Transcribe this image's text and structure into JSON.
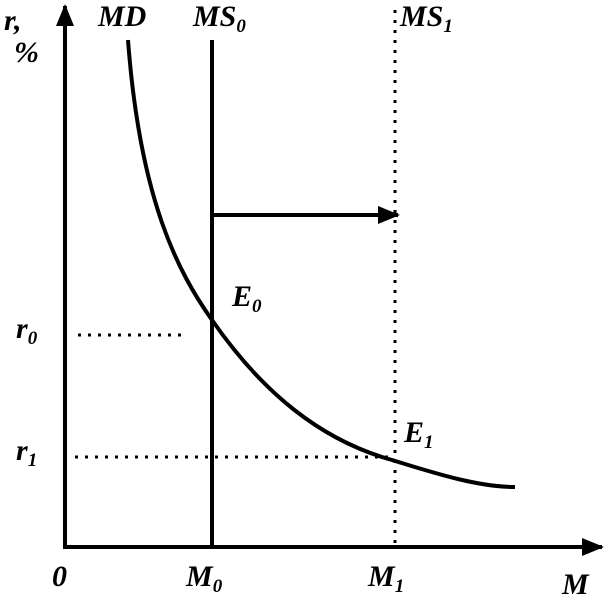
{
  "axes": {
    "y_title": [
      "r,",
      "%"
    ],
    "x_title": "M",
    "origin": "0"
  },
  "curves": {
    "md": "MD",
    "ms0": {
      "text": "MS",
      "sub": "0"
    },
    "ms1": {
      "text": "MS",
      "sub": "1"
    }
  },
  "points": {
    "e0": {
      "text": "E",
      "sub": "0"
    },
    "e1": {
      "text": "E",
      "sub": "1"
    }
  },
  "y_marks": {
    "r0": {
      "text": "r",
      "sub": "0"
    },
    "r1": {
      "text": "r",
      "sub": "1"
    }
  },
  "x_marks": {
    "m0": {
      "text": "M",
      "sub": "0"
    },
    "m1": {
      "text": "M",
      "sub": "1"
    }
  }
}
